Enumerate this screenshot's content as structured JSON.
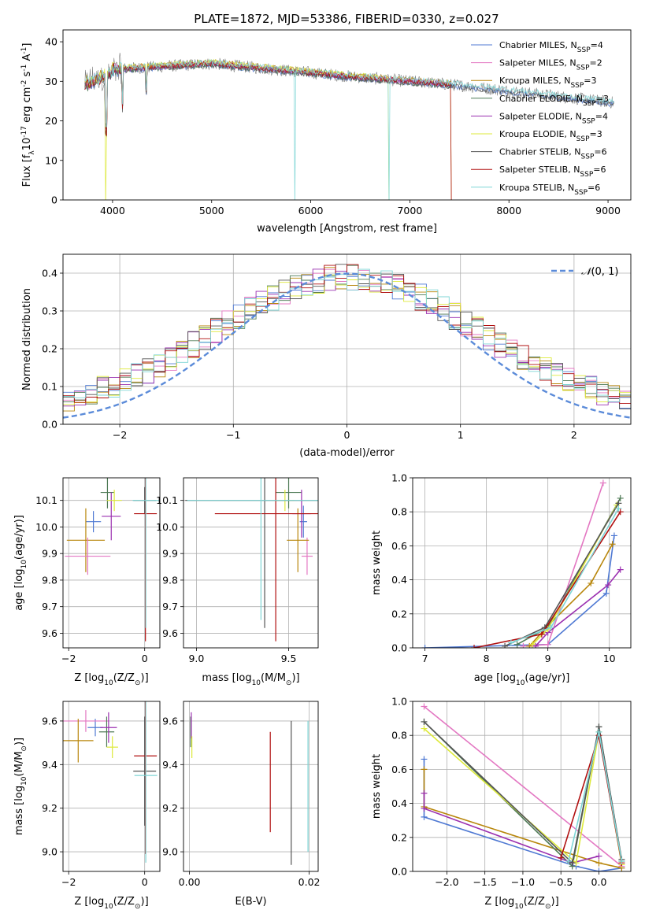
{
  "figure": {
    "title": "PLATE=1872, MJD=53386, FIBERID=0330, z=0.027"
  },
  "models": [
    {
      "name": "Chabrier MILES",
      "nssp": "4",
      "color": "#4f79d3"
    },
    {
      "name": "Salpeter MILES",
      "nssp": "2",
      "color": "#e377c2"
    },
    {
      "name": "Kroupa MILES",
      "nssp": "3",
      "color": "#b8860b"
    },
    {
      "name": "Chabrier ELODIE",
      "nssp": "3",
      "color": "#4e7a55"
    },
    {
      "name": "Salpeter ELODIE",
      "nssp": "4",
      "color": "#9b30b0"
    },
    {
      "name": "Kroupa ELODIE",
      "nssp": "3",
      "color": "#dde93a"
    },
    {
      "name": "Chabrier STELIB",
      "nssp": "6",
      "color": "#555555"
    },
    {
      "name": "Salpeter STELIB",
      "nssp": "6",
      "color": "#b01010"
    },
    {
      "name": "Kroupa STELIB",
      "nssp": "6",
      "color": "#7fd6d6"
    }
  ],
  "legend_nssp_prefix": "N",
  "legend_nssp_sub": "SSP",
  "chart_data": [
    {
      "id": "spectrum",
      "type": "line",
      "xlabel": "wavelength [Angstrom, rest frame]",
      "ylabel": "Flux [f",
      "ylabel_parts": [
        "Flux [f",
        "λ",
        "10",
        "-17",
        " erg cm",
        "-2",
        " s",
        "-1",
        " A",
        "-1",
        "]"
      ],
      "xlim": [
        3500,
        9230
      ],
      "ylim": [
        0,
        43
      ],
      "xticks": [
        4000,
        5000,
        6000,
        7000,
        8000,
        9000
      ],
      "yticks": [
        0,
        10,
        20,
        30,
        40
      ],
      "observed_color": "#808080",
      "observed_range": [
        3720,
        9060
      ],
      "notes_drops": [
        3930,
        5840,
        6790,
        7420
      ]
    },
    {
      "id": "residuals",
      "type": "line",
      "xlabel": "(data-model)/error",
      "ylabel": "Normed distribution",
      "xlim": [
        -2.5,
        2.5
      ],
      "ylim": [
        0,
        0.45
      ],
      "xticks": [
        -2,
        -1,
        0,
        1,
        2
      ],
      "yticks": [
        0.0,
        0.1,
        0.2,
        0.3,
        0.4
      ],
      "grid": true,
      "legend": "N(0,1)",
      "legend_math": [
        "𝒩",
        "(0, 1)"
      ],
      "gauss_color": "#5b8bd9"
    },
    {
      "id": "age_vs_Z",
      "type": "scatter",
      "xlabel_parts": [
        "Z [log",
        "10",
        "(Z/Z",
        "⊙",
        ")]"
      ],
      "ylabel_parts": [
        "age  [log",
        "10",
        "(age/yr)]"
      ],
      "xlim": [
        -2.15,
        0.4
      ],
      "ylim": [
        9.545,
        10.185
      ],
      "xticks": [
        -2,
        0
      ],
      "yticks": [
        9.6,
        9.7,
        9.8,
        9.9,
        10.0,
        10.1
      ],
      "grid": true,
      "points": [
        {
          "m": 0,
          "x": -1.35,
          "xe": 0.2,
          "y": 10.02,
          "ye": 0.04
        },
        {
          "m": 2,
          "x": -1.55,
          "xe": 0.5,
          "y": 9.95,
          "ye": 0.12
        },
        {
          "m": 1,
          "x": -1.5,
          "xe": 0.6,
          "y": 9.89,
          "ye": 0.07
        },
        {
          "m": 3,
          "x": -0.98,
          "xe": 0.18,
          "y": 10.13,
          "ye": 0.06
        },
        {
          "m": 4,
          "x": -0.88,
          "xe": 0.25,
          "y": 10.04,
          "ye": 0.09
        },
        {
          "m": 5,
          "x": -0.8,
          "xe": 0.2,
          "y": 10.1,
          "ye": 0.04
        },
        {
          "m": 6,
          "x": 0.0,
          "xe": 0.3,
          "y": 10.1,
          "ye": 0.05
        },
        {
          "m": 7,
          "x": 0.02,
          "xe": 0.3,
          "y": 10.05,
          "ye": 0.48
        },
        {
          "m": 8,
          "x": 0.03,
          "xe": 0.35,
          "y": 10.1,
          "ye": 0.48
        }
      ]
    },
    {
      "id": "age_vs_mass",
      "type": "scatter",
      "xlabel_parts": [
        "mass [log",
        "10",
        "(M/M",
        "⊙",
        ")]"
      ],
      "xlim": [
        8.93,
        9.66
      ],
      "ylim": [
        9.545,
        10.185
      ],
      "xticks": [
        9.0,
        9.5
      ],
      "yticks": [
        9.6,
        9.7,
        9.8,
        9.9,
        10.0,
        10.1
      ],
      "grid": true,
      "points": [
        {
          "m": 0,
          "x": 9.58,
          "xe": 0.02,
          "y": 10.02,
          "ye": 0.06
        },
        {
          "m": 1,
          "x": 9.6,
          "xe": 0.03,
          "y": 9.89,
          "ye": 0.07
        },
        {
          "m": 2,
          "x": 9.55,
          "xe": 0.06,
          "y": 9.95,
          "ye": 0.12
        },
        {
          "m": 3,
          "x": 9.5,
          "xe": 0.07,
          "y": 10.13,
          "ye": 0.06
        },
        {
          "m": 4,
          "x": 9.57,
          "xe": 0.05,
          "y": 10.05,
          "ye": 0.09
        },
        {
          "m": 5,
          "x": 9.48,
          "xe": 0.05,
          "y": 10.1,
          "ye": 0.04
        },
        {
          "m": 6,
          "x": 9.37,
          "xe": 0.43,
          "y": 10.1,
          "ye": 0.48
        },
        {
          "m": 7,
          "x": 9.43,
          "xe": 0.33,
          "y": 10.05,
          "ye": 0.48
        },
        {
          "m": 8,
          "x": 9.35,
          "xe": 0.4,
          "y": 10.1,
          "ye": 0.45
        }
      ]
    },
    {
      "id": "weight_vs_age",
      "type": "line",
      "xlabel_parts": [
        "age  [log",
        "10",
        "(age/yr)]"
      ],
      "ylabel": "mass weight",
      "xlim": [
        6.8,
        10.35
      ],
      "ylim": [
        0,
        1.0
      ],
      "xticks": [
        7,
        8,
        9,
        10
      ],
      "yticks": [
        0.0,
        0.2,
        0.4,
        0.6,
        0.8,
        1.0
      ],
      "grid": true,
      "series": [
        {
          "m": 0,
          "x": [
            7.0,
            9.0,
            9.95,
            10.08
          ],
          "y": [
            0.0,
            0.02,
            0.32,
            0.66
          ]
        },
        {
          "m": 1,
          "x": [
            8.6,
            9.0,
            9.9
          ],
          "y": [
            0.01,
            0.02,
            0.97
          ]
        },
        {
          "m": 2,
          "x": [
            8.7,
            9.0,
            9.7,
            10.05
          ],
          "y": [
            0.01,
            0.13,
            0.38,
            0.61
          ]
        },
        {
          "m": 3,
          "x": [
            8.5,
            9.0,
            10.18
          ],
          "y": [
            0.02,
            0.12,
            0.88
          ]
        },
        {
          "m": 4,
          "x": [
            8.8,
            9.0,
            9.98,
            10.18
          ],
          "y": [
            0.01,
            0.09,
            0.37,
            0.46
          ]
        },
        {
          "m": 5,
          "x": [
            8.75,
            9.0,
            10.12
          ],
          "y": [
            0.02,
            0.11,
            0.84
          ]
        },
        {
          "m": 6,
          "x": [
            8.3,
            8.95,
            10.15
          ],
          "y": [
            0.01,
            0.12,
            0.85
          ]
        },
        {
          "m": 7,
          "x": [
            7.8,
            8.9,
            10.18
          ],
          "y": [
            0.0,
            0.08,
            0.8
          ]
        },
        {
          "m": 8,
          "x": [
            8.4,
            9.05,
            10.15
          ],
          "y": [
            0.03,
            0.12,
            0.82
          ]
        }
      ]
    },
    {
      "id": "mass_vs_Z",
      "type": "scatter",
      "xlabel_parts": [
        "Z [log",
        "10",
        "(Z/Z",
        "⊙",
        ")]"
      ],
      "ylabel_parts": [
        "mass [log",
        "10",
        "(M/M",
        "⊙",
        ")]"
      ],
      "xlim": [
        -2.15,
        0.4
      ],
      "ylim": [
        8.91,
        9.69
      ],
      "xticks": [
        -2,
        0
      ],
      "yticks": [
        9.0,
        9.2,
        9.4,
        9.6
      ],
      "grid": true,
      "points": [
        {
          "m": 0,
          "x": -1.3,
          "xe": 0.2,
          "y": 9.57,
          "ye": 0.04
        },
        {
          "m": 1,
          "x": -1.55,
          "xe": 0.6,
          "y": 9.6,
          "ye": 0.05
        },
        {
          "m": 2,
          "x": -1.75,
          "xe": 0.4,
          "y": 9.51,
          "ye": 0.1
        },
        {
          "m": 3,
          "x": -1.0,
          "xe": 0.2,
          "y": 9.55,
          "ye": 0.07
        },
        {
          "m": 4,
          "x": -0.95,
          "xe": 0.22,
          "y": 9.57,
          "ye": 0.07
        },
        {
          "m": 5,
          "x": -0.85,
          "xe": 0.15,
          "y": 9.48,
          "ye": 0.05
        },
        {
          "m": 6,
          "x": 0.0,
          "xe": 0.3,
          "y": 9.37,
          "ye": 0.25
        },
        {
          "m": 7,
          "x": 0.02,
          "xe": 0.3,
          "y": 9.44,
          "ye": 0.45
        },
        {
          "m": 8,
          "x": 0.03,
          "xe": 0.3,
          "y": 9.35,
          "ye": 0.4
        }
      ]
    },
    {
      "id": "mass_vs_EBV",
      "type": "scatter",
      "xlabel": "E(B-V)",
      "xlim": [
        -0.001,
        0.0215
      ],
      "ylim": [
        8.91,
        9.69
      ],
      "xticks": [
        0.0,
        0.02
      ],
      "yticks": [
        9.0,
        9.2,
        9.4,
        9.6
      ],
      "grid": true,
      "points": [
        {
          "m": 3,
          "x": 0.0002,
          "xe": 0,
          "y": 9.55,
          "ye": 0.07
        },
        {
          "m": 4,
          "x": 0.0003,
          "xe": 0,
          "y": 9.58,
          "ye": 0.06
        },
        {
          "m": 5,
          "x": 0.0004,
          "xe": 0,
          "y": 9.48,
          "ye": 0.05
        },
        {
          "m": 7,
          "x": 0.0135,
          "xe": 0,
          "y": 9.32,
          "ye": 0.23
        },
        {
          "m": 6,
          "x": 0.017,
          "xe": 0,
          "y": 9.27,
          "ye": 0.33
        },
        {
          "m": 8,
          "x": 0.0198,
          "xe": 0,
          "y": 9.3,
          "ye": 0.3
        }
      ]
    },
    {
      "id": "weight_vs_Z",
      "type": "line",
      "xlabel_parts": [
        "Z [log",
        "10",
        "(Z/Z",
        "⊙",
        ")]"
      ],
      "ylabel": "mass weight",
      "xlim": [
        -2.45,
        0.42
      ],
      "ylim": [
        0,
        1.0
      ],
      "xticks": [
        -2.0,
        -1.5,
        -1.0,
        -0.5,
        0.0
      ],
      "grid": true,
      "yticks": [
        0.0,
        0.2,
        0.4,
        0.6,
        0.8,
        1.0
      ],
      "series": [
        {
          "m": 0,
          "x": [
            -2.3,
            -2.3,
            -0.3,
            0.0,
            0.3
          ],
          "y": [
            0.66,
            0.32,
            0.03,
            0.0,
            0.02
          ]
        },
        {
          "m": 1,
          "x": [
            -2.3,
            0.3
          ],
          "y": [
            0.97,
            0.03
          ]
        },
        {
          "m": 2,
          "x": [
            -2.3,
            -2.3,
            0.0,
            0.3
          ],
          "y": [
            0.6,
            0.38,
            0.05,
            0.02
          ]
        },
        {
          "m": 3,
          "x": [
            -2.3,
            -0.35,
            0.0,
            0.3
          ],
          "y": [
            0.88,
            0.03,
            0.85,
            0.06
          ]
        },
        {
          "m": 4,
          "x": [
            -2.3,
            -2.3,
            -0.35,
            0.0
          ],
          "y": [
            0.46,
            0.37,
            0.05,
            0.09
          ]
        },
        {
          "m": 5,
          "x": [
            -2.3,
            -0.3,
            0.0,
            0.3
          ],
          "y": [
            0.84,
            0.05,
            0.82,
            0.04
          ]
        },
        {
          "m": 6,
          "x": [
            -2.3,
            -0.35,
            0.0,
            0.3
          ],
          "y": [
            0.88,
            0.05,
            0.85,
            0.07
          ]
        },
        {
          "m": 7,
          "x": [
            -0.5,
            0.0,
            0.3
          ],
          "y": [
            0.08,
            0.8,
            0.05
          ]
        },
        {
          "m": 8,
          "x": [
            -0.4,
            0.0,
            0.3
          ],
          "y": [
            0.06,
            0.82,
            0.06
          ]
        }
      ]
    }
  ]
}
